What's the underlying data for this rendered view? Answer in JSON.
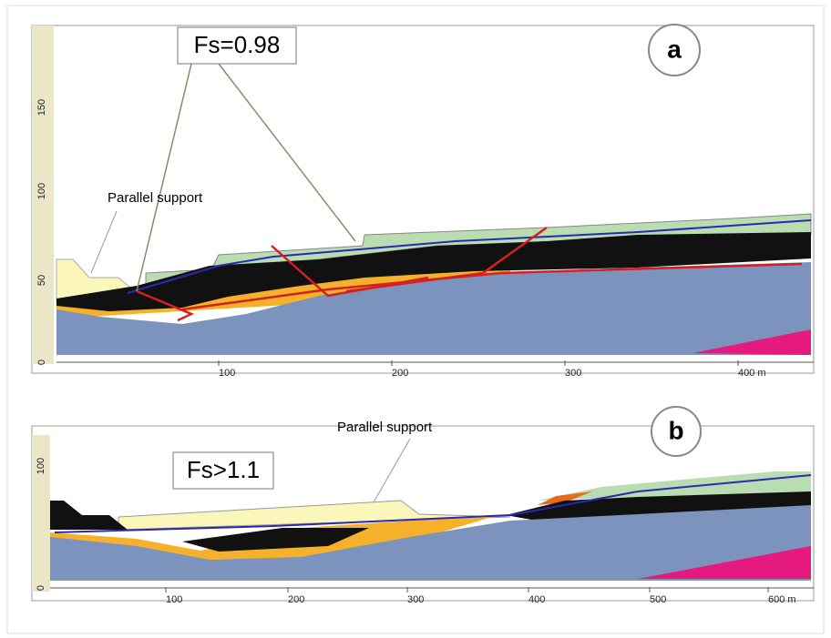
{
  "panels": [
    {
      "label": "a",
      "fs": "Fs=0.98",
      "annotation": "Parallel support",
      "x_ticks": [
        "100",
        "200",
        "300",
        "400 m"
      ],
      "y_ticks": [
        "0",
        "50",
        "100",
        "150"
      ]
    },
    {
      "label": "b",
      "fs": "Fs>1.1",
      "annotation": "Parallel support",
      "x_ticks": [
        "100",
        "200",
        "300",
        "400",
        "500",
        "600 m"
      ],
      "y_ticks": [
        "0",
        "100"
      ]
    }
  ]
}
